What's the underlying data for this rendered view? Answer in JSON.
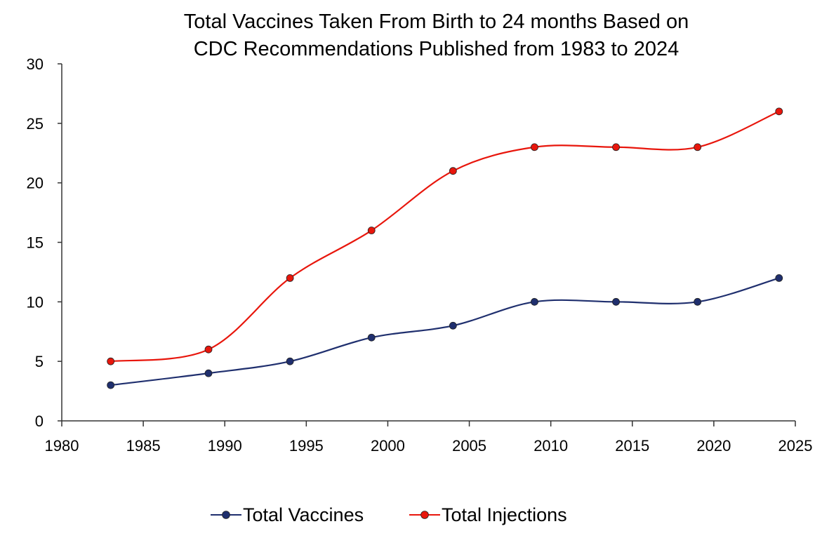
{
  "chart_data": {
    "type": "line",
    "title_lines": [
      "Total Vaccines Taken From Birth to 24 months Based on",
      "CDC Recommendations Published from 1983 to 2024"
    ],
    "xlim": [
      1980,
      2025
    ],
    "ylim": [
      0,
      30
    ],
    "x_ticks": [
      "1980",
      "1985",
      "1990",
      "1995",
      "2000",
      "2005",
      "2010",
      "2015",
      "2020",
      "2025"
    ],
    "y_ticks": [
      "0",
      "5",
      "10",
      "15",
      "20",
      "25",
      "30"
    ],
    "x": [
      1983,
      1989,
      1994,
      1999,
      2004,
      2009,
      2014,
      2019,
      2024
    ],
    "smoothed": true,
    "grid": false,
    "legend_position": "bottom",
    "series": [
      {
        "name": "Total Vaccines",
        "color": "#1f2f6e",
        "values": [
          3,
          4,
          5,
          7,
          8,
          10,
          10,
          10,
          12
        ]
      },
      {
        "name": "Total Injections",
        "color": "#e8160c",
        "values": [
          5,
          6,
          12,
          16,
          21,
          23,
          23,
          23,
          26
        ]
      }
    ]
  }
}
